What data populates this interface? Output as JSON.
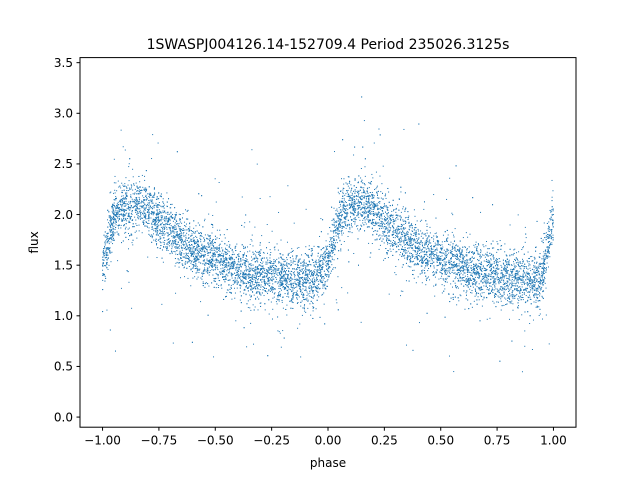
{
  "chart_data": {
    "type": "scatter",
    "title": "1SWASPJ004126.14-152709.4 Period 235026.3125s",
    "xlabel": "phase",
    "ylabel": "flux",
    "xlim": [
      -1.1,
      1.1
    ],
    "ylim": [
      -0.1,
      3.55
    ],
    "xticks": [
      -1.0,
      -0.75,
      -0.5,
      -0.25,
      0.0,
      0.25,
      0.5,
      0.75,
      1.0
    ],
    "xtick_labels": [
      "−1.00",
      "−0.75",
      "−0.50",
      "−0.25",
      "0.00",
      "0.25",
      "0.50",
      "0.75",
      "1.00"
    ],
    "yticks": [
      0.0,
      0.5,
      1.0,
      1.5,
      2.0,
      2.5,
      3.0,
      3.5
    ],
    "ytick_labels": [
      "0.0",
      "0.5",
      "1.0",
      "1.5",
      "2.0",
      "2.5",
      "3.0",
      "3.5"
    ],
    "grid": false,
    "marker_color": "#1f77b4",
    "series": [
      {
        "x": [
          -1.0,
          -0.95,
          -0.9,
          -0.85,
          -0.8,
          -0.75,
          -0.7,
          -0.65,
          -0.6,
          -0.55,
          -0.5,
          -0.45,
          -0.4,
          -0.35,
          -0.3,
          -0.25,
          -0.2,
          -0.15,
          -0.1,
          -0.05,
          0.0,
          0.05,
          0.1,
          0.15,
          0.2,
          0.25,
          0.3,
          0.35,
          0.4,
          0.45,
          0.5,
          0.55,
          0.6,
          0.65,
          0.7,
          0.75,
          0.8,
          0.85,
          0.9,
          0.95,
          1.0
        ],
        "y": [
          1.45,
          2.0,
          2.08,
          2.1,
          2.05,
          1.95,
          1.85,
          1.75,
          1.65,
          1.6,
          1.55,
          1.5,
          1.45,
          1.42,
          1.4,
          1.38,
          1.37,
          1.36,
          1.36,
          1.38,
          1.5,
          1.95,
          2.08,
          2.1,
          2.05,
          1.95,
          1.85,
          1.75,
          1.65,
          1.6,
          1.55,
          1.5,
          1.45,
          1.42,
          1.4,
          1.38,
          1.37,
          1.36,
          1.36,
          1.38,
          2.0
        ]
      }
    ]
  }
}
